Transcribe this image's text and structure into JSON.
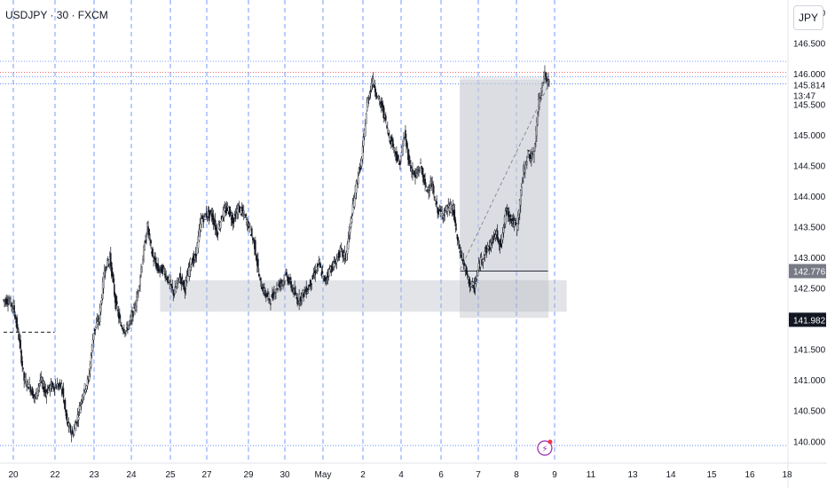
{
  "header": {
    "title": "USDJPY · 30 · FXCM",
    "currency": "JPY"
  },
  "countdown": "13:47",
  "colors": {
    "grid_v": "#2962ff",
    "red_line": "#f23645",
    "blue_line": "#2962ff",
    "candle": "#131722",
    "zone": "#b2b5be",
    "event": "#9c27b0"
  },
  "chart_data": {
    "type": "candlestick",
    "x_labels": [
      "20",
      "22",
      "23",
      "24",
      "25",
      "27",
      "29",
      "30",
      "May",
      "2",
      "4",
      "6",
      "7",
      "8",
      "9",
      "11",
      "13",
      "14",
      "15",
      "16",
      "18"
    ],
    "yticks": [
      140.0,
      140.5,
      141.0,
      141.5,
      142.0,
      142.5,
      143.0,
      143.5,
      144.0,
      144.5,
      145.0,
      145.5,
      146.0,
      146.5,
      147.0
    ],
    "ylim": [
      139.7,
      147.2
    ],
    "price_badges": [
      {
        "value": "145.814",
        "kind": "last"
      },
      {
        "value": "142.776",
        "kind": "level"
      },
      {
        "value": "141.982",
        "kind": "level"
      }
    ],
    "horizontal_lines": [
      146.2,
      146.02,
      145.95,
      145.83,
      139.93
    ],
    "close_path": [
      [
        0,
        142.3
      ],
      [
        1,
        142.3
      ],
      [
        2,
        142.2
      ],
      [
        3,
        141.7
      ],
      [
        4,
        141.0
      ],
      [
        5,
        140.9
      ],
      [
        6,
        140.7
      ],
      [
        7,
        141.0
      ],
      [
        8,
        140.8
      ],
      [
        9,
        140.9
      ],
      [
        10,
        140.9
      ],
      [
        11,
        140.9
      ],
      [
        12,
        140.3
      ],
      [
        13,
        140.1
      ],
      [
        14,
        140.4
      ],
      [
        15,
        140.8
      ],
      [
        16,
        141.0
      ],
      [
        17,
        141.8
      ],
      [
        18,
        142.0
      ],
      [
        19,
        142.8
      ],
      [
        20,
        143.0
      ],
      [
        21,
        142.3
      ],
      [
        22,
        141.9
      ],
      [
        23,
        141.8
      ],
      [
        24,
        142.0
      ],
      [
        25,
        142.3
      ],
      [
        26,
        142.9
      ],
      [
        27,
        143.5
      ],
      [
        28,
        143.0
      ],
      [
        29,
        142.8
      ],
      [
        30,
        142.8
      ],
      [
        31,
        142.6
      ],
      [
        32,
        142.4
      ],
      [
        33,
        142.7
      ],
      [
        34,
        142.5
      ],
      [
        35,
        142.9
      ],
      [
        36,
        143.0
      ],
      [
        37,
        143.6
      ],
      [
        38,
        143.7
      ],
      [
        39,
        143.7
      ],
      [
        40,
        143.4
      ],
      [
        41,
        143.7
      ],
      [
        42,
        143.8
      ],
      [
        43,
        143.6
      ],
      [
        44,
        143.8
      ],
      [
        45,
        143.7
      ],
      [
        46,
        143.5
      ],
      [
        47,
        143.2
      ],
      [
        48,
        142.6
      ],
      [
        49,
        142.4
      ],
      [
        50,
        142.3
      ],
      [
        51,
        142.5
      ],
      [
        52,
        142.6
      ],
      [
        53,
        142.7
      ],
      [
        54,
        142.5
      ],
      [
        55,
        142.3
      ],
      [
        56,
        142.4
      ],
      [
        57,
        142.5
      ],
      [
        58,
        142.7
      ],
      [
        59,
        142.9
      ],
      [
        60,
        142.6
      ],
      [
        61,
        142.8
      ],
      [
        62,
        142.9
      ],
      [
        63,
        143.1
      ],
      [
        64,
        143.0
      ],
      [
        65,
        143.6
      ],
      [
        66,
        144.2
      ],
      [
        67,
        144.6
      ],
      [
        68,
        145.5
      ],
      [
        69,
        145.9
      ],
      [
        70,
        145.6
      ],
      [
        71,
        145.4
      ],
      [
        72,
        145.0
      ],
      [
        73,
        144.8
      ],
      [
        74,
        144.5
      ],
      [
        75,
        145.0
      ],
      [
        76,
        144.5
      ],
      [
        77,
        144.3
      ],
      [
        78,
        144.5
      ],
      [
        79,
        144.1
      ],
      [
        80,
        144.2
      ],
      [
        81,
        143.8
      ],
      [
        82,
        143.7
      ],
      [
        83,
        143.8
      ],
      [
        84,
        143.8
      ],
      [
        85,
        143.2
      ],
      [
        86,
        142.9
      ],
      [
        87,
        142.6
      ],
      [
        88,
        142.5
      ],
      [
        89,
        142.9
      ],
      [
        90,
        143.1
      ],
      [
        91,
        143.2
      ],
      [
        92,
        143.4
      ],
      [
        93,
        143.2
      ],
      [
        94,
        143.8
      ],
      [
        95,
        143.6
      ],
      [
        96,
        143.5
      ],
      [
        97,
        144.3
      ],
      [
        98,
        144.7
      ],
      [
        99,
        144.6
      ],
      [
        100,
        145.5
      ],
      [
        101,
        146.0
      ],
      [
        102,
        145.814
      ]
    ],
    "zones": [
      {
        "x0": 29.3,
        "x1": 105,
        "y0": 142.12,
        "y1": 142.62
      },
      {
        "x0": 85.2,
        "x1": 101.6,
        "y0": 142.02,
        "y1": 145.89
      }
    ],
    "position_box": {
      "x0": 85.2,
      "x1": 101.6,
      "entry": 142.776,
      "target": 145.95,
      "stop": 142.02
    },
    "trend_line": [
      [
        85.2,
        142.8
      ],
      [
        101.6,
        145.8
      ]
    ],
    "dashed_level": {
      "x0": 0,
      "x1": 9.5,
      "value": 141.78
    },
    "event_marker_x": 101.0
  }
}
